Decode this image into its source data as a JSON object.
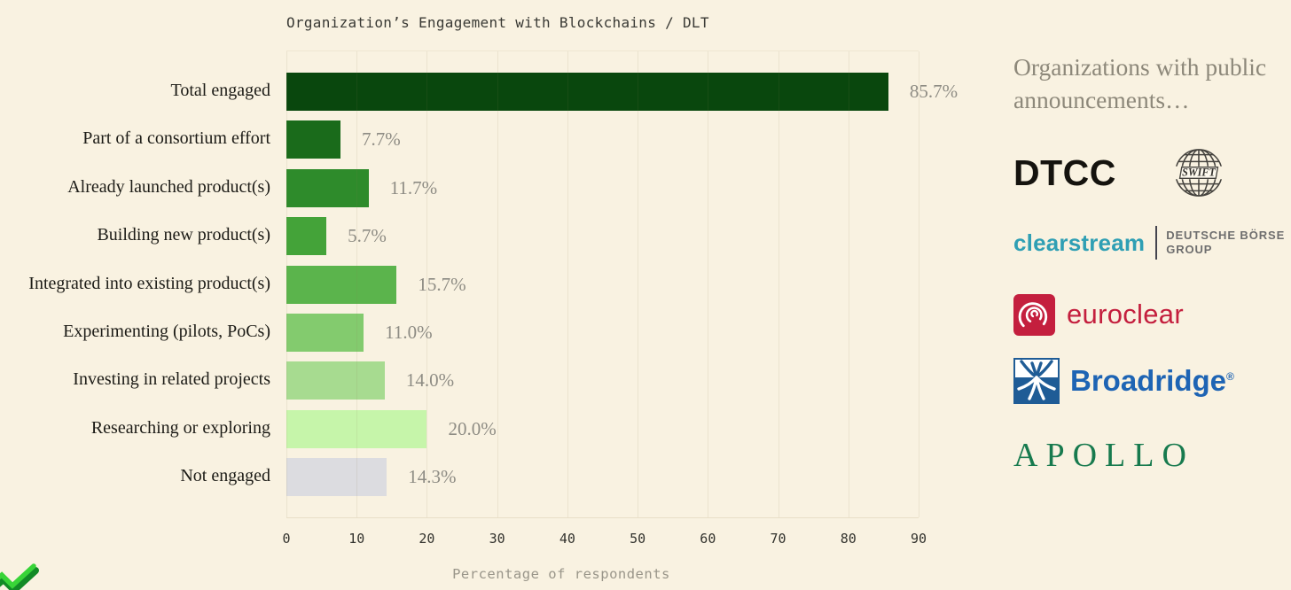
{
  "page": {
    "background": "#f9f2e1"
  },
  "chart_data": {
    "type": "bar",
    "orientation": "horizontal",
    "title": "Organization’s Engagement with Blockchains / DLT",
    "xlabel": "Percentage of respondents",
    "xlim": [
      0,
      90
    ],
    "xticks": [
      0,
      10,
      20,
      30,
      40,
      50,
      60,
      70,
      80,
      90
    ],
    "grid": true,
    "legend": "none",
    "categories": [
      "Total engaged",
      "Part of a consortium effort",
      "Already launched product(s)",
      "Building new product(s)",
      "Integrated into existing product(s)",
      "Experimenting (pilots, PoCs)",
      "Investing in related projects",
      "Researching or exploring",
      "Not engaged"
    ],
    "values": [
      85.7,
      7.7,
      11.7,
      5.7,
      15.7,
      11.0,
      14.0,
      20.0,
      14.3
    ],
    "value_labels": [
      "85.7%",
      "7.7%",
      "11.7%",
      "5.7%",
      "15.7%",
      "11.0%",
      "14.0%",
      "20.0%",
      "14.3%"
    ],
    "bar_colors": [
      "#09470d",
      "#1a6b1b",
      "#2e8b2b",
      "#44a339",
      "#5bb44c",
      "#83cb6e",
      "#a7db90",
      "#c6f5aa",
      "#dcdce0"
    ]
  },
  "sidebar": {
    "heading": "Organizations with public announcements…",
    "heading_color": "#8d887a",
    "logos": [
      {
        "name": "DTCC",
        "text": "DTCC",
        "color": "#15130e"
      },
      {
        "name": "SWIFT",
        "text": "SWIFT",
        "color": "#45433e"
      },
      {
        "name": "Clearstream / Deutsche Boerse Group",
        "text": "clearstream",
        "color": "#2f9fb4",
        "secondary_line1": "DEUTSCHE BÖRSE",
        "secondary_line2": "GROUP",
        "secondary_color": "#6e6e6e"
      },
      {
        "name": "Euroclear",
        "text": "euroclear",
        "color": "#c41f3e"
      },
      {
        "name": "Broadridge",
        "text": "Broadridge",
        "reg_mark": "®",
        "color": "#1e64b4"
      },
      {
        "name": "Apollo",
        "text": "APOLLO",
        "color": "#177a4e"
      }
    ]
  }
}
